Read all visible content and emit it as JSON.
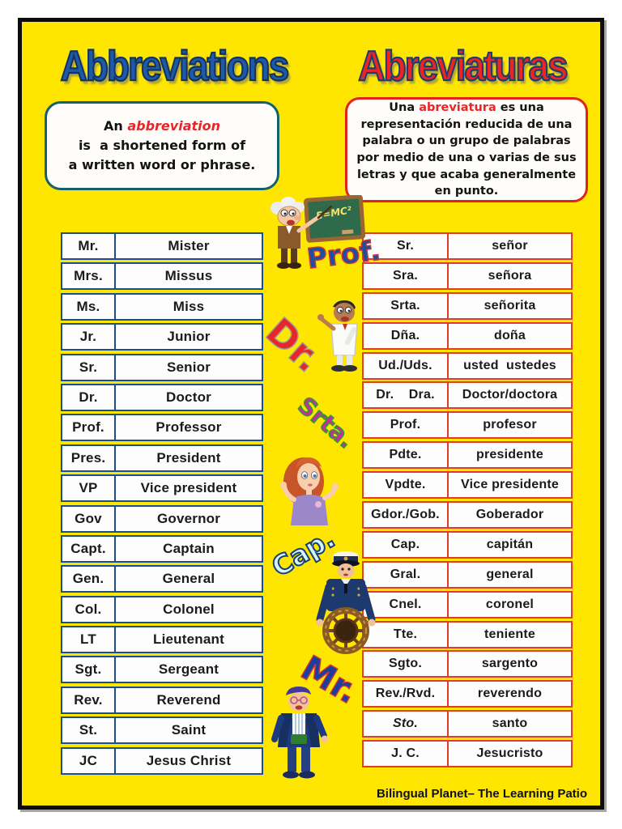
{
  "page": {
    "footer_text": "Bilingual Planet– The Learning Patio",
    "background_color": "#FFE600"
  },
  "titles": {
    "english": "Abbreviations",
    "spanish": "Abreviaturas"
  },
  "definitions": {
    "english": {
      "prefix": "An ",
      "highlight": "abbreviation",
      "line2": "is  a shortened form of",
      "line3": "a written word or phrase."
    },
    "spanish": {
      "prefix": "Una ",
      "highlight": "abreviatura",
      "after": " es una representación reducida de una palabra o un grupo de palabras por medio de una o varias de sus letras  y que acaba  generalmente en punto."
    }
  },
  "tables": {
    "english": {
      "rows": [
        {
          "abbr": "Mr.",
          "meaning": "Mister"
        },
        {
          "abbr": "Mrs.",
          "meaning": "Missus"
        },
        {
          "abbr": "Ms.",
          "meaning": "Miss"
        },
        {
          "abbr": "Jr.",
          "meaning": "Junior"
        },
        {
          "abbr": "Sr.",
          "meaning": "Senior"
        },
        {
          "abbr": "Dr.",
          "meaning": "Doctor"
        },
        {
          "abbr": "Prof.",
          "meaning": "Professor"
        },
        {
          "abbr": "Pres.",
          "meaning": "President"
        },
        {
          "abbr": "VP",
          "meaning": "Vice president"
        },
        {
          "abbr": "Gov",
          "meaning": "Governor"
        },
        {
          "abbr": "Capt.",
          "meaning": "Captain"
        },
        {
          "abbr": "Gen.",
          "meaning": "General"
        },
        {
          "abbr": "Col.",
          "meaning": "Colonel"
        },
        {
          "abbr": "LT",
          "meaning": "Lieutenant"
        },
        {
          "abbr": "Sgt.",
          "meaning": "Sergeant"
        },
        {
          "abbr": "Rev.",
          "meaning": "Reverend"
        },
        {
          "abbr": "St.",
          "meaning": "Saint"
        },
        {
          "abbr": "JC",
          "meaning": "Jesus Christ"
        }
      ]
    },
    "spanish": {
      "rows": [
        {
          "abbr": "Sr.",
          "meaning": "señor"
        },
        {
          "abbr": "Sra.",
          "meaning": "señora"
        },
        {
          "abbr": "Srta.",
          "meaning": "señorita"
        },
        {
          "abbr": "Dña.",
          "meaning": "doña"
        },
        {
          "abbr": "Ud./Uds.",
          "meaning": "usted  ustedes"
        },
        {
          "abbr": "Dr.    Dra.",
          "meaning": "Doctor/doctora"
        },
        {
          "abbr": "Prof.",
          "meaning": "profesor"
        },
        {
          "abbr": "Pdte.",
          "meaning": "presidente"
        },
        {
          "abbr": "Vpdte.",
          "meaning": "Vice presidente"
        },
        {
          "abbr": "Gdor./Gob.",
          "meaning": "Goberador"
        },
        {
          "abbr": "Cap.",
          "meaning": "capitán"
        },
        {
          "abbr": "Gral.",
          "meaning": "general"
        },
        {
          "abbr": "Cnel.",
          "meaning": "coronel"
        },
        {
          "abbr": "Tte.",
          "meaning": "teniente"
        },
        {
          "abbr": "Sgto.",
          "meaning": "sargento"
        },
        {
          "abbr": "Rev./Rvd.",
          "meaning": "reverendo"
        },
        {
          "abbr": "Sto.",
          "meaning": "santo",
          "italic": true
        },
        {
          "abbr": "J. C.",
          "meaning": "Jesucristo"
        }
      ]
    }
  },
  "middle_figures": {
    "blackboard_text": "E=MC²",
    "labels": {
      "professor": "Prof.",
      "doctor": "Dr.",
      "senorita": "Srta.",
      "captain": "Cap.",
      "mister": "Mr."
    }
  },
  "colors": {
    "title_english": "#1E5AA8",
    "title_spanish": "#EE2424",
    "highlight_red": "#E8262A",
    "english_table_border": "#1B4F8A",
    "spanish_table_border": "#E03C28",
    "definition_border_english": "#14606B",
    "definition_border_spanish": "#E0241D"
  }
}
